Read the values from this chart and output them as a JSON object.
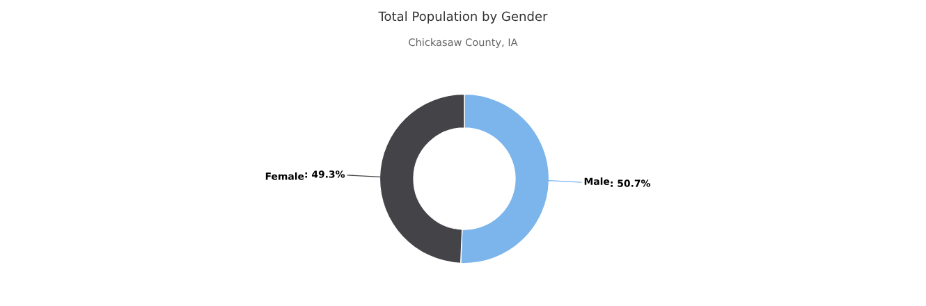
{
  "chart_data": {
    "type": "donut",
    "title": "Total Population by Gender",
    "subtitle": "Chickasaw County, IA",
    "categories": [
      "Male",
      "Female"
    ],
    "values": [
      50.7,
      49.3
    ],
    "colors": [
      "#7cb5ec",
      "#434348"
    ],
    "value_labels": [
      ": 50.7%",
      ": 49.3%"
    ]
  }
}
